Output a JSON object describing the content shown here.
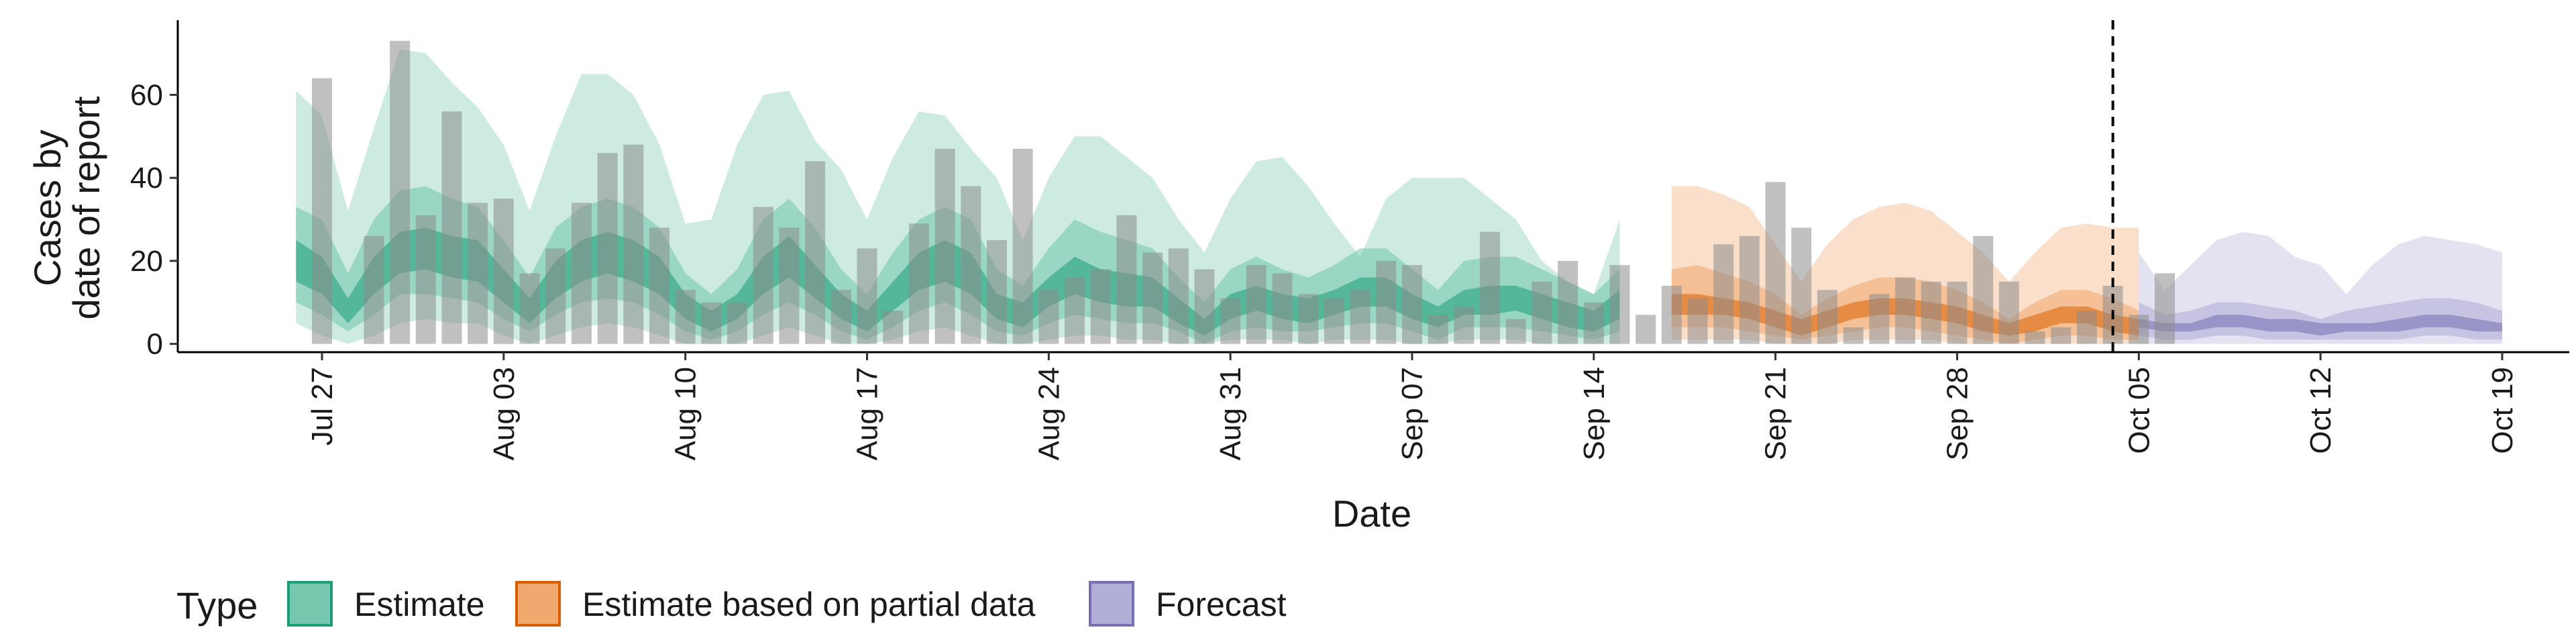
{
  "chart_data": {
    "type": "bar",
    "title": "",
    "xlabel": "Date",
    "ylabel_lines": [
      "Cases by",
      "date of report"
    ],
    "ylim": [
      -2,
      78
    ],
    "yticks": [
      0,
      20,
      40,
      60
    ],
    "x_start": "2023-07-23",
    "xlim_days": [
      0,
      92
    ],
    "xticks": [
      {
        "label": "Jul 27",
        "date": "2023-07-27"
      },
      {
        "label": "Aug 03",
        "date": "2023-08-03"
      },
      {
        "label": "Aug 10",
        "date": "2023-08-10"
      },
      {
        "label": "Aug 17",
        "date": "2023-08-17"
      },
      {
        "label": "Aug 24",
        "date": "2023-08-24"
      },
      {
        "label": "Aug 31",
        "date": "2023-08-31"
      },
      {
        "label": "Sep 07",
        "date": "2023-09-07"
      },
      {
        "label": "Sep 14",
        "date": "2023-09-14"
      },
      {
        "label": "Sep 21",
        "date": "2023-09-21"
      },
      {
        "label": "Sep 28",
        "date": "2023-09-28"
      },
      {
        "label": "Oct 05",
        "date": "2023-10-05"
      },
      {
        "label": "Oct 12",
        "date": "2023-10-12"
      },
      {
        "label": "Oct 19",
        "date": "2023-10-19"
      }
    ],
    "vline_date": "2023-10-04",
    "grid": false,
    "legend": {
      "title": "Type",
      "position": "bottom",
      "entries": [
        {
          "label": "Estimate",
          "fill": "#66c2a5",
          "stroke": "#1b9e77"
        },
        {
          "label": "Estimate based on partial data",
          "fill": "#f0a060",
          "stroke": "#d95f02"
        },
        {
          "label": "Forecast",
          "fill": "#a9a6d4",
          "stroke": "#7570b3"
        }
      ]
    },
    "bars": {
      "start_date": "2023-07-27",
      "values": [
        64,
        0,
        26,
        73,
        31,
        56,
        34,
        35,
        17,
        23,
        34,
        46,
        48,
        28,
        13,
        10,
        10,
        33,
        28,
        44,
        13,
        23,
        8,
        29,
        47,
        38,
        25,
        47,
        13,
        16,
        18,
        31,
        22,
        23,
        18,
        11,
        19,
        17,
        12,
        11,
        13,
        20,
        19,
        7,
        9,
        27,
        6,
        15,
        20,
        10,
        19,
        7,
        14,
        11,
        24,
        26,
        39,
        28,
        13,
        4,
        12,
        16,
        15,
        15,
        26,
        15,
        3,
        4,
        8,
        14,
        7,
        17
      ]
    },
    "bands": [
      {
        "name": "Estimate",
        "colors": {
          "line": "#1b9e77",
          "fill": "#66c2a5"
        },
        "start_date": "2023-07-26",
        "median": [
          20,
          16,
          8,
          16,
          22,
          23,
          21,
          20,
          14,
          8,
          15,
          20,
          22,
          20,
          16,
          9,
          5,
          9,
          16,
          21,
          15,
          9,
          5,
          11,
          17,
          20,
          17,
          9,
          7,
          12,
          16,
          14,
          13,
          12,
          8,
          4,
          9,
          11,
          9,
          8,
          10,
          12,
          12,
          9,
          6,
          10,
          10,
          11,
          9,
          7,
          6,
          10
        ],
        "inner_lo": [
          15,
          12,
          5,
          12,
          17,
          18,
          16,
          15,
          10,
          5,
          11,
          15,
          17,
          15,
          12,
          6,
          3,
          6,
          12,
          16,
          11,
          6,
          3,
          8,
          13,
          15,
          12,
          6,
          4,
          9,
          12,
          10,
          9,
          9,
          5,
          2,
          6,
          8,
          6,
          5,
          7,
          9,
          9,
          6,
          4,
          7,
          7,
          8,
          6,
          4,
          3,
          6
        ],
        "inner_hi": [
          25,
          21,
          11,
          21,
          27,
          28,
          26,
          25,
          18,
          11,
          20,
          25,
          27,
          25,
          21,
          12,
          8,
          12,
          21,
          26,
          19,
          12,
          8,
          15,
          22,
          25,
          22,
          12,
          10,
          16,
          21,
          18,
          17,
          16,
          11,
          6,
          12,
          14,
          12,
          11,
          13,
          16,
          16,
          12,
          9,
          13,
          14,
          14,
          12,
          10,
          8,
          13
        ],
        "mid_lo": [
          10,
          7,
          3,
          7,
          12,
          12,
          11,
          10,
          6,
          3,
          7,
          10,
          11,
          10,
          7,
          3,
          1,
          3,
          7,
          10,
          7,
          3,
          1,
          4,
          8,
          10,
          7,
          3,
          2,
          5,
          7,
          6,
          5,
          5,
          3,
          0,
          3,
          4,
          3,
          3,
          4,
          5,
          5,
          3,
          1,
          4,
          4,
          4,
          3,
          2,
          1,
          3
        ],
        "mid_hi": [
          33,
          30,
          17,
          30,
          37,
          38,
          35,
          33,
          25,
          16,
          28,
          33,
          35,
          33,
          28,
          17,
          12,
          18,
          30,
          35,
          28,
          18,
          12,
          22,
          30,
          33,
          30,
          18,
          14,
          23,
          30,
          27,
          25,
          23,
          16,
          10,
          18,
          21,
          18,
          16,
          19,
          23,
          23,
          18,
          13,
          20,
          21,
          21,
          18,
          15,
          12,
          18
        ],
        "outer_lo": [
          5,
          2,
          0,
          2,
          5,
          6,
          5,
          5,
          2,
          0,
          2,
          4,
          5,
          4,
          2,
          0,
          0,
          0,
          2,
          4,
          2,
          0,
          0,
          1,
          3,
          4,
          2,
          0,
          0,
          1,
          2,
          2,
          1,
          1,
          0,
          0,
          1,
          1,
          1,
          0,
          1,
          1,
          1,
          0,
          0,
          1,
          1,
          1,
          0,
          0,
          0,
          0
        ],
        "outer_hi": [
          61,
          55,
          32,
          52,
          71,
          70,
          63,
          57,
          48,
          32,
          50,
          65,
          65,
          60,
          48,
          29,
          30,
          48,
          60,
          61,
          49,
          42,
          30,
          45,
          56,
          55,
          47,
          40,
          25,
          40,
          50,
          50,
          45,
          40,
          30,
          22,
          35,
          44,
          45,
          38,
          29,
          21,
          35,
          40,
          40,
          40,
          35,
          30,
          20,
          15,
          12,
          30
        ]
      },
      {
        "name": "Estimate based on partial data",
        "colors": {
          "line": "#d95f02",
          "fill": "#f0a060"
        },
        "start_date": "2023-09-17",
        "median": [
          9,
          10,
          9,
          8,
          6,
          4,
          6,
          8,
          9,
          9,
          8,
          7,
          5,
          3,
          5,
          7,
          7,
          5,
          4
        ],
        "inner_lo": [
          7,
          7,
          7,
          6,
          4,
          2,
          4,
          6,
          7,
          7,
          6,
          5,
          3,
          2,
          3,
          5,
          5,
          3,
          2
        ],
        "inner_hi": [
          12,
          12,
          11,
          10,
          8,
          6,
          8,
          10,
          11,
          11,
          10,
          9,
          7,
          5,
          7,
          9,
          9,
          7,
          6
        ],
        "mid_lo": [
          4,
          4,
          4,
          3,
          2,
          1,
          2,
          3,
          4,
          4,
          3,
          2,
          1,
          0,
          1,
          2,
          2,
          1,
          1
        ],
        "mid_hi": [
          18,
          19,
          17,
          15,
          12,
          7,
          11,
          14,
          16,
          16,
          15,
          13,
          10,
          6,
          10,
          13,
          13,
          11,
          8
        ],
        "outer_lo": [
          1,
          1,
          1,
          1,
          0,
          0,
          0,
          1,
          1,
          1,
          1,
          0,
          0,
          0,
          0,
          0,
          0,
          0,
          0
        ],
        "outer_hi": [
          38,
          38,
          36,
          33,
          24,
          15,
          24,
          30,
          33,
          34,
          32,
          27,
          22,
          15,
          22,
          28,
          29,
          28,
          28
        ]
      },
      {
        "name": "Forecast",
        "colors": {
          "line": "#7570b3",
          "fill": "#a9a6d4"
        },
        "start_date": "2023-10-05",
        "median": [
          5,
          4,
          4,
          5,
          5,
          4,
          4,
          3,
          4,
          4,
          4,
          5,
          5,
          4,
          4
        ],
        "inner_lo": [
          4,
          3,
          3,
          4,
          4,
          3,
          3,
          2,
          3,
          3,
          3,
          4,
          4,
          3,
          3
        ],
        "inner_hi": [
          6,
          5,
          5,
          7,
          7,
          6,
          6,
          5,
          5,
          5,
          6,
          7,
          7,
          6,
          5
        ],
        "mid_lo": [
          2,
          1,
          1,
          2,
          2,
          1,
          1,
          1,
          1,
          1,
          1,
          2,
          2,
          1,
          1
        ],
        "mid_hi": [
          10,
          7,
          8,
          10,
          10,
          9,
          8,
          6,
          8,
          9,
          10,
          11,
          11,
          10,
          8
        ],
        "outer_lo": [
          0,
          0,
          0,
          0,
          0,
          0,
          0,
          0,
          0,
          0,
          0,
          0,
          0,
          0,
          0
        ],
        "outer_hi": [
          22,
          13,
          19,
          25,
          27,
          26,
          21,
          19,
          12,
          19,
          24,
          26,
          25,
          24,
          22
        ]
      }
    ]
  }
}
